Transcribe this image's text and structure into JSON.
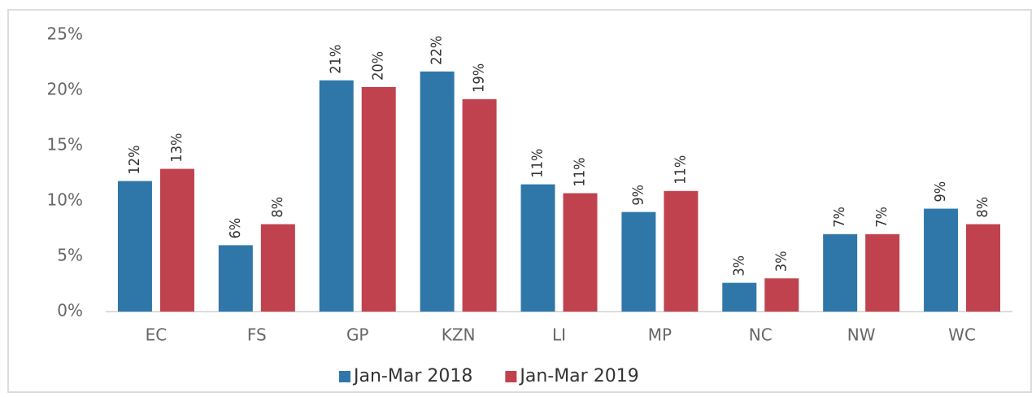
{
  "chart_data": {
    "type": "bar",
    "categories": [
      "EC",
      "FS",
      "GP",
      "KZN",
      "LI",
      "MP",
      "NC",
      "NW",
      "WC"
    ],
    "series": [
      {
        "name": "Jan-Mar 2018",
        "color": "#2f77a8",
        "values": [
          11.8,
          6,
          20.9,
          21.7,
          11.5,
          9,
          2.6,
          7,
          9.3
        ],
        "value_labels": [
          "12%",
          "6%",
          "21%",
          "22%",
          "11%",
          "9%",
          "3%",
          "7%",
          "9%"
        ]
      },
      {
        "name": "Jan-Mar 2019",
        "color": "#c0424e",
        "values": [
          12.9,
          7.9,
          20.3,
          19.2,
          10.7,
          10.9,
          3.0,
          7,
          7.9
        ],
        "value_labels": [
          "13%",
          "8%",
          "20%",
          "19%",
          "11%",
          "11%",
          "3%",
          "7%",
          "8%"
        ]
      }
    ],
    "ylim": [
      0,
      25
    ],
    "yticks": [
      {
        "value": 0,
        "label": "0%"
      },
      {
        "value": 5,
        "label": "5%"
      },
      {
        "value": 10,
        "label": "10%"
      },
      {
        "value": 15,
        "label": "15%"
      },
      {
        "value": 20,
        "label": "20%"
      },
      {
        "value": 25,
        "label": "25%"
      }
    ],
    "legend": "bottom"
  }
}
